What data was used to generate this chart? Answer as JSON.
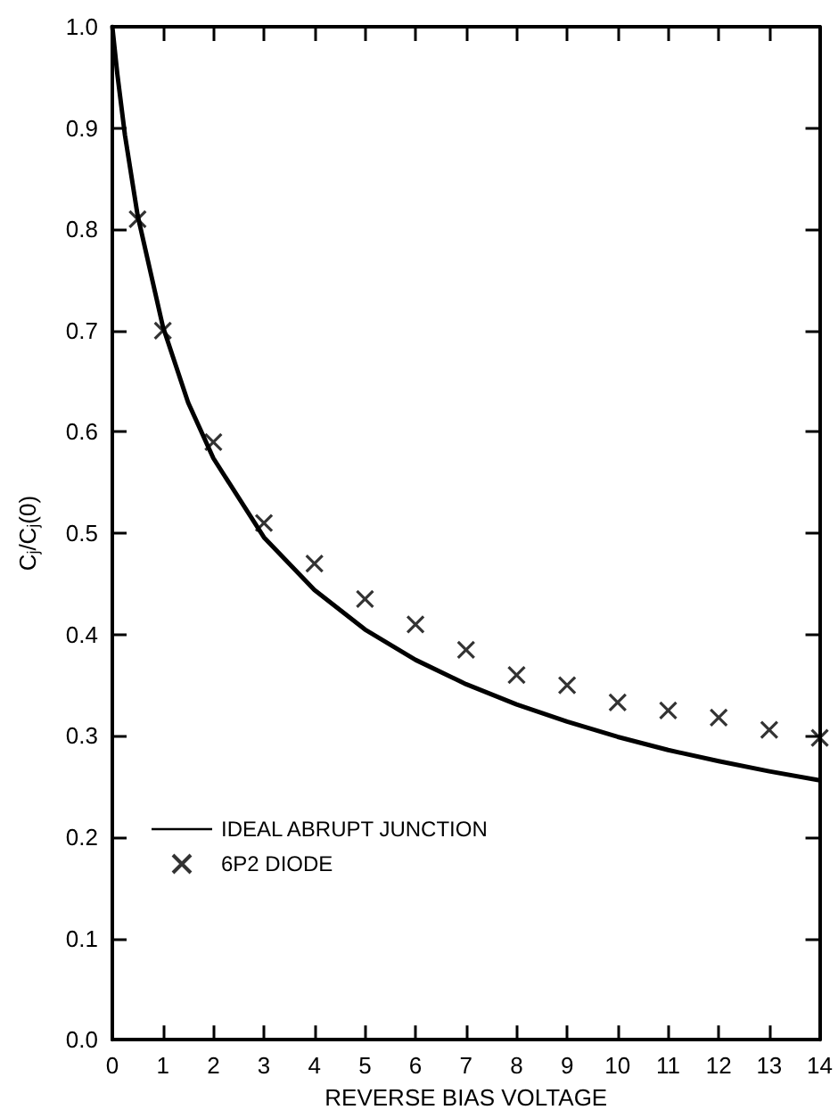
{
  "chart_data": {
    "type": "line",
    "xlabel": "REVERSE BIAS VOLTAGE",
    "ylabel": "C$_{j}$/C$_{j}$(0)",
    "xlim": [
      0,
      14
    ],
    "xticks": [
      0,
      1,
      2,
      3,
      4,
      5,
      6,
      7,
      8,
      9,
      10,
      11,
      12,
      13,
      14
    ],
    "ylim": [
      0,
      1.0
    ],
    "yticks": [
      {
        "value": 0,
        "label": "0.0"
      },
      0.1,
      0.2,
      0.3,
      0.4,
      0.5,
      0.6,
      0.7,
      0.8,
      0.9,
      {
        "value": 1,
        "label": "1.0"
      }
    ],
    "grid": false,
    "legend": "bottom left",
    "series": [
      {
        "name": "IDEAL ABRUPT JUNCTION",
        "color": "#000000",
        "marker": "none",
        "line_style": "solid",
        "x": [
          0,
          0.1,
          0.25,
          0.5,
          1,
          1.5,
          2,
          3,
          4,
          5,
          6,
          7,
          8,
          9,
          10,
          11,
          12,
          13,
          14
        ],
        "values": [
          1.0,
          0.953,
          0.893,
          0.814,
          0.704,
          0.629,
          0.574,
          0.496,
          0.444,
          0.405,
          0.375,
          0.351,
          0.331,
          0.314,
          0.299,
          0.286,
          0.275,
          0.265,
          0.256
        ]
      },
      {
        "name": "6P2 DIODE",
        "type": "scatter",
        "color": "#000000",
        "marker": "cross",
        "x": [
          0.5,
          1,
          2,
          3,
          4,
          5,
          6,
          7,
          8,
          9,
          10,
          11,
          12,
          13,
          14
        ],
        "values": [
          0.81,
          0.7,
          0.59,
          0.51,
          0.47,
          0.435,
          0.41,
          0.385,
          0.36,
          0.35,
          0.333,
          0.325,
          0.318,
          0.306,
          0.298
        ]
      }
    ]
  }
}
